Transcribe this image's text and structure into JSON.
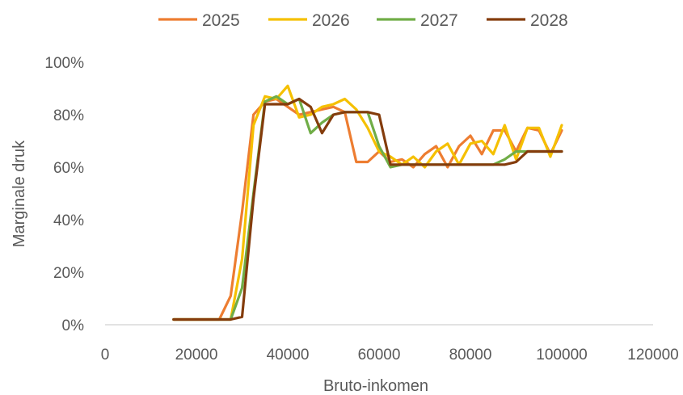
{
  "chart_data": {
    "type": "line",
    "xlabel": "Bruto-inkomen",
    "ylabel": "Marginale druk",
    "xlim": [
      0,
      120000
    ],
    "ylim": [
      0,
      1
    ],
    "x_ticks": [
      "0",
      "20000",
      "40000",
      "60000",
      "80000",
      "100000",
      "120000"
    ],
    "y_ticks": [
      "0%",
      "20%",
      "40%",
      "60%",
      "80%",
      "100%"
    ],
    "grid": false,
    "legend_position": "top",
    "series": [
      {
        "name": "2025",
        "color": "#ED7D31",
        "points": [
          [
            15000,
            0.02
          ],
          [
            20000,
            0.02
          ],
          [
            25000,
            0.02
          ],
          [
            27500,
            0.11
          ],
          [
            30000,
            0.43
          ],
          [
            32500,
            0.8
          ],
          [
            35000,
            0.85
          ],
          [
            37500,
            0.86
          ],
          [
            40000,
            0.83
          ],
          [
            42500,
            0.8
          ],
          [
            45000,
            0.81
          ],
          [
            47500,
            0.82
          ],
          [
            50000,
            0.83
          ],
          [
            52500,
            0.81
          ],
          [
            55000,
            0.62
          ],
          [
            57500,
            0.62
          ],
          [
            60000,
            0.66
          ],
          [
            62500,
            0.62
          ],
          [
            65000,
            0.63
          ],
          [
            67500,
            0.6
          ],
          [
            70000,
            0.65
          ],
          [
            72500,
            0.68
          ],
          [
            75000,
            0.6
          ],
          [
            77500,
            0.68
          ],
          [
            80000,
            0.72
          ],
          [
            82500,
            0.65
          ],
          [
            85000,
            0.74
          ],
          [
            87500,
            0.74
          ],
          [
            90000,
            0.66
          ],
          [
            92500,
            0.75
          ],
          [
            95000,
            0.74
          ],
          [
            97500,
            0.65
          ],
          [
            100000,
            0.74
          ]
        ]
      },
      {
        "name": "2026",
        "color": "#F5C000",
        "points": [
          [
            15000,
            0.02
          ],
          [
            20000,
            0.02
          ],
          [
            25000,
            0.02
          ],
          [
            27500,
            0.02
          ],
          [
            30000,
            0.25
          ],
          [
            32500,
            0.76
          ],
          [
            35000,
            0.87
          ],
          [
            37500,
            0.86
          ],
          [
            40000,
            0.91
          ],
          [
            42500,
            0.79
          ],
          [
            45000,
            0.8
          ],
          [
            47500,
            0.83
          ],
          [
            50000,
            0.84
          ],
          [
            52500,
            0.86
          ],
          [
            55000,
            0.82
          ],
          [
            57500,
            0.75
          ],
          [
            60000,
            0.66
          ],
          [
            62500,
            0.64
          ],
          [
            65000,
            0.61
          ],
          [
            67500,
            0.64
          ],
          [
            70000,
            0.6
          ],
          [
            72500,
            0.66
          ],
          [
            75000,
            0.69
          ],
          [
            77500,
            0.61
          ],
          [
            80000,
            0.69
          ],
          [
            82500,
            0.7
          ],
          [
            85000,
            0.65
          ],
          [
            87500,
            0.76
          ],
          [
            90000,
            0.63
          ],
          [
            92500,
            0.75
          ],
          [
            95000,
            0.75
          ],
          [
            97500,
            0.64
          ],
          [
            100000,
            0.76
          ]
        ]
      },
      {
        "name": "2027",
        "color": "#70AD47",
        "points": [
          [
            15000,
            0.02
          ],
          [
            20000,
            0.02
          ],
          [
            25000,
            0.02
          ],
          [
            27500,
            0.02
          ],
          [
            30000,
            0.14
          ],
          [
            32500,
            0.5
          ],
          [
            35000,
            0.85
          ],
          [
            37500,
            0.87
          ],
          [
            40000,
            0.84
          ],
          [
            42500,
            0.86
          ],
          [
            45000,
            0.73
          ],
          [
            47500,
            0.77
          ],
          [
            50000,
            0.8
          ],
          [
            52500,
            0.81
          ],
          [
            55000,
            0.81
          ],
          [
            57500,
            0.81
          ],
          [
            60000,
            0.68
          ],
          [
            62500,
            0.6
          ],
          [
            65000,
            0.61
          ],
          [
            67500,
            0.61
          ],
          [
            70000,
            0.61
          ],
          [
            72500,
            0.61
          ],
          [
            75000,
            0.61
          ],
          [
            77500,
            0.61
          ],
          [
            80000,
            0.61
          ],
          [
            82500,
            0.61
          ],
          [
            85000,
            0.61
          ],
          [
            87500,
            0.63
          ],
          [
            90000,
            0.66
          ],
          [
            92500,
            0.66
          ],
          [
            95000,
            0.66
          ],
          [
            97500,
            0.66
          ],
          [
            100000,
            0.66
          ]
        ]
      },
      {
        "name": "2028",
        "color": "#843C0C",
        "points": [
          [
            15000,
            0.02
          ],
          [
            20000,
            0.02
          ],
          [
            25000,
            0.02
          ],
          [
            27500,
            0.02
          ],
          [
            30000,
            0.03
          ],
          [
            32500,
            0.48
          ],
          [
            35000,
            0.84
          ],
          [
            37500,
            0.84
          ],
          [
            40000,
            0.84
          ],
          [
            42500,
            0.86
          ],
          [
            45000,
            0.83
          ],
          [
            47500,
            0.73
          ],
          [
            50000,
            0.8
          ],
          [
            52500,
            0.81
          ],
          [
            55000,
            0.81
          ],
          [
            57500,
            0.81
          ],
          [
            60000,
            0.8
          ],
          [
            62500,
            0.61
          ],
          [
            65000,
            0.61
          ],
          [
            67500,
            0.61
          ],
          [
            70000,
            0.61
          ],
          [
            72500,
            0.61
          ],
          [
            75000,
            0.61
          ],
          [
            77500,
            0.61
          ],
          [
            80000,
            0.61
          ],
          [
            82500,
            0.61
          ],
          [
            85000,
            0.61
          ],
          [
            87500,
            0.61
          ],
          [
            90000,
            0.62
          ],
          [
            92500,
            0.66
          ],
          [
            95000,
            0.66
          ],
          [
            97500,
            0.66
          ],
          [
            100000,
            0.66
          ]
        ]
      }
    ]
  }
}
